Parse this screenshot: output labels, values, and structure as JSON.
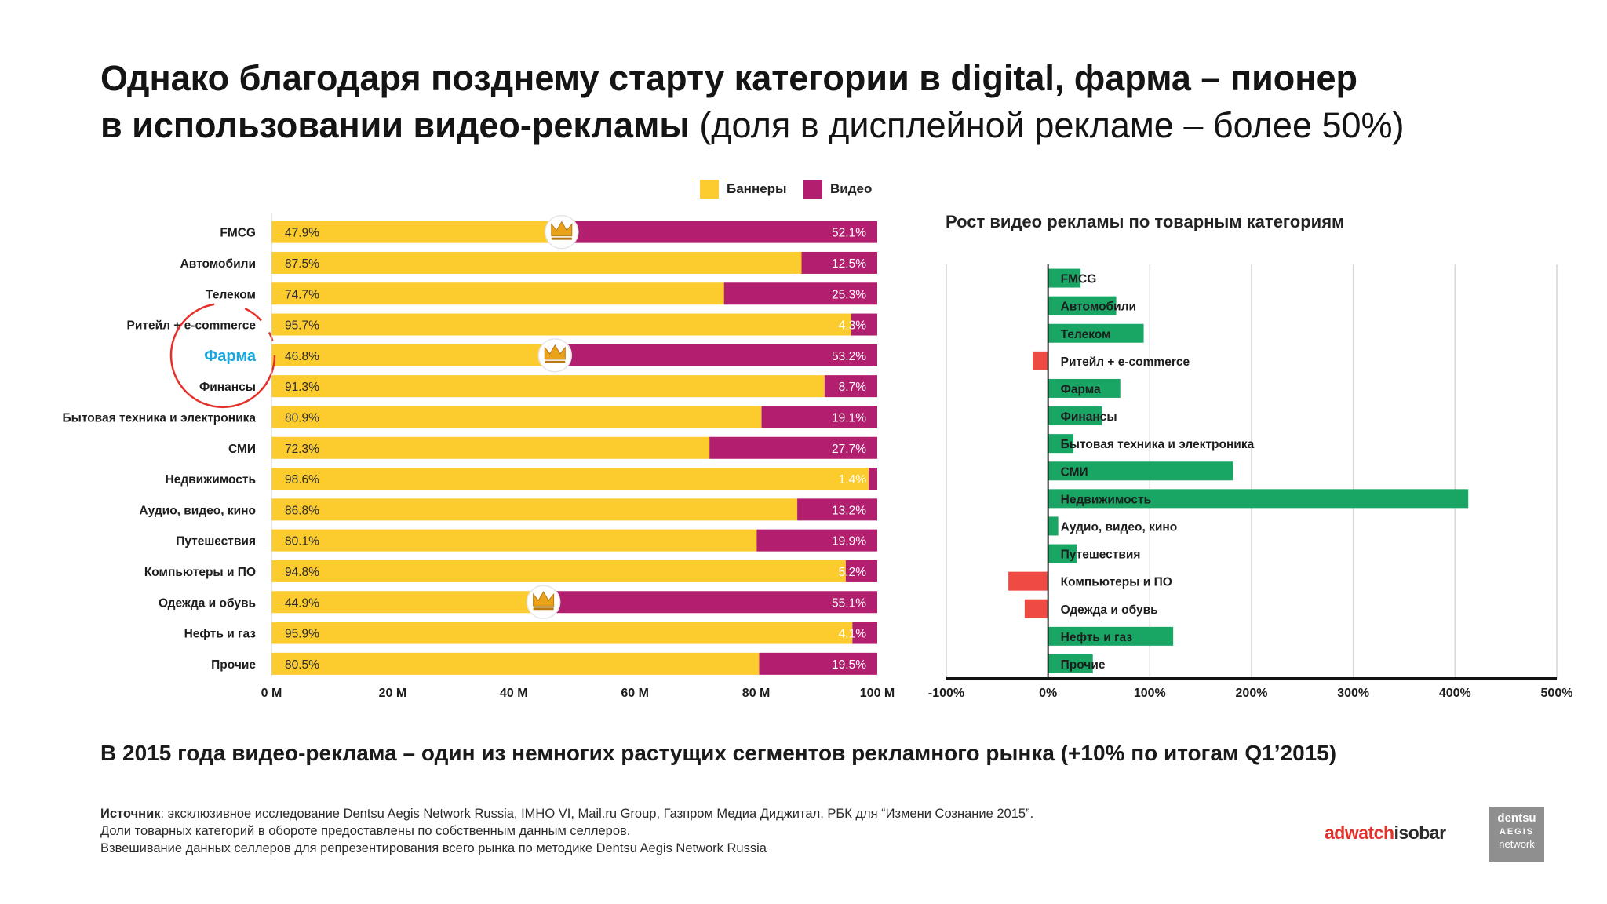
{
  "title": {
    "line1": "Однако благодаря позднему старту категории в digital, фарма – пионер",
    "line2_bold": "в использовании видео-рекламы",
    "line2_light": " (доля в дисплейной рекламе – более 50%)"
  },
  "legend": {
    "banners": "Баннеры",
    "video": "Видео"
  },
  "colors": {
    "banners": "#FCCB2E",
    "video": "#B21F6E",
    "growth_pos": "#19A665",
    "growth_neg": "#F04B43",
    "highlight": "#1BA7DE",
    "circle": "#E4322B",
    "grid": "#D6D6D6"
  },
  "chart_data": [
    {
      "type": "bar",
      "orientation": "horizontal",
      "stacked": true,
      "categories": [
        "FMCG",
        "Автомобили",
        "Телеком",
        "Ритейл + e-commerce",
        "Фарма",
        "Финансы",
        "Бытовая техника и электроника",
        "СМИ",
        "Недвижимость",
        "Аудио, видео, кино",
        "Путешествия",
        "Компьютеры и ПО",
        "Одежда и обувь",
        "Нефть и газ",
        "Прочие"
      ],
      "highlighted_category": "Фарма",
      "series": [
        {
          "name": "Баннеры",
          "values": [
            47.9,
            87.5,
            74.7,
            95.7,
            46.8,
            91.3,
            80.9,
            72.3,
            98.6,
            86.8,
            80.1,
            94.8,
            44.9,
            95.9,
            80.5
          ],
          "labels": [
            "47.9%",
            "87.5%",
            "74.7%",
            "95.7%",
            "46.8%",
            "91.3%",
            "80.9%",
            "72.3%",
            "98.6%",
            "86.8%",
            "80.1%",
            "94.8%",
            "44.9%",
            "95.9%",
            "80.5%"
          ]
        },
        {
          "name": "Видео",
          "values": [
            52.1,
            12.5,
            25.3,
            4.3,
            53.2,
            8.7,
            19.1,
            27.7,
            1.4,
            13.2,
            19.9,
            5.2,
            55.1,
            4.1,
            19.5
          ],
          "labels": [
            "52.1%",
            "12.5%",
            "25.3%",
            "4.3%",
            "53.2%",
            "8.7%",
            "19.1%",
            "27.7%",
            "1.4%",
            "13.2%",
            "19.9%",
            "5.2%",
            "55.1%",
            "4.1%",
            "19.5%"
          ]
        }
      ],
      "crown_categories": [
        "FMCG",
        "Фарма",
        "Одежда и обувь"
      ],
      "xlim": [
        0,
        100
      ],
      "xticks": [
        0,
        20,
        40,
        60,
        80,
        100
      ],
      "xtick_labels": [
        "0 M",
        "20 M",
        "40 M",
        "60 M",
        "80 M",
        "100 M"
      ],
      "legend_position": "top-right"
    },
    {
      "type": "bar",
      "orientation": "horizontal",
      "title": "Рост видео рекламы по товарным категориям",
      "categories": [
        "FMCG",
        "Автомобили",
        "Телеком",
        "Ритейл + e-commerce",
        "Фарма",
        "Финансы",
        "Бытовая техника и электроника",
        "СМИ",
        "Недвижимость",
        "Аудио, видео, кино",
        "Путешествия",
        "Компьютеры и ПО",
        "Одежда и обувь",
        "Нефть и газ",
        "Прочие"
      ],
      "values": [
        32,
        67,
        94,
        -15,
        71,
        53,
        25,
        182,
        413,
        10,
        28,
        -39,
        -23,
        123,
        44
      ],
      "xlim": [
        -100,
        500
      ],
      "xticks": [
        -100,
        0,
        100,
        200,
        300,
        400,
        500
      ],
      "xtick_labels": [
        "-100%",
        "0%",
        "100%",
        "200%",
        "300%",
        "400%",
        "500%"
      ],
      "grid": true
    }
  ],
  "subtitle": "В 2015 года видео-реклама – один из немногих растущих сегментов рекламного рынка (+10% по итогам Q1’2015)",
  "source": {
    "label": "Источник",
    "line1": ": эксклюзивное исследование Dentsu Aegis Network Russia, IMHO VI, Mail.ru Group, Газпром Медиа Диджитал, РБК для “Измени Сознание 2015”.",
    "line2": "Доли товарных категорий в обороте предоставлены по собственным данным селлеров.",
    "line3": "Взвешивание данных селлеров для репрезентирования всего рынка по методике Dentsu Aegis Network Russia"
  },
  "logos": {
    "adwatch_a": "adwatch",
    "adwatch_b": "isobar",
    "dentsu_1": "dentsu",
    "dentsu_2": "AEGIS",
    "dentsu_3": "network"
  }
}
